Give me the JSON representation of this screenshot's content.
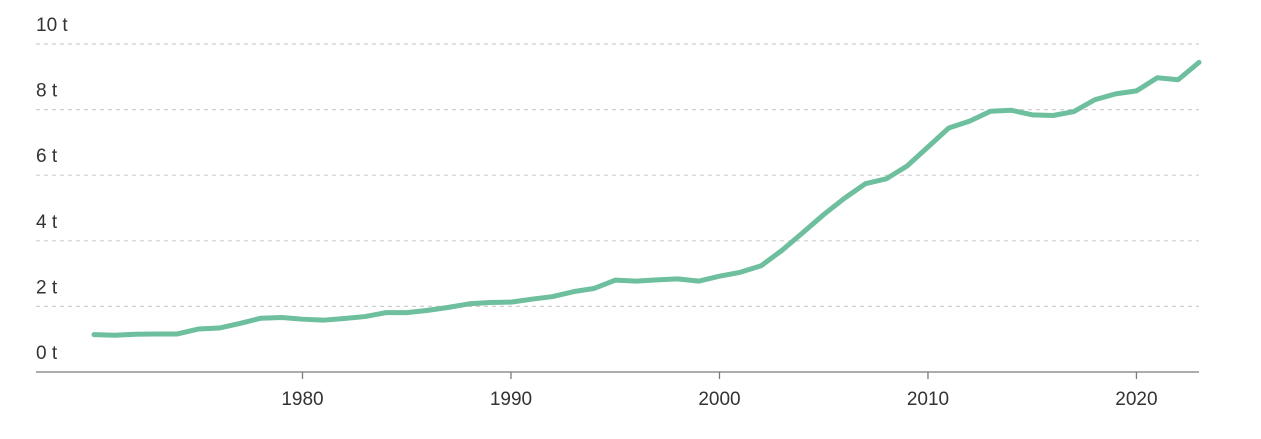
{
  "chart_data": {
    "type": "line",
    "title": "",
    "xlabel": "",
    "ylabel": "",
    "unit_suffix": " t",
    "xlim": [
      1970,
      2023
    ],
    "ylim": [
      0,
      10
    ],
    "y_ticks": [
      0,
      2,
      4,
      6,
      8,
      10
    ],
    "y_tick_labels": [
      "0 t",
      "2 t",
      "4 t",
      "6 t",
      "8 t",
      "10 t"
    ],
    "x_ticks": [
      1980,
      1990,
      2000,
      2010,
      2020
    ],
    "x_tick_labels": [
      "1980",
      "1990",
      "2000",
      "2010",
      "2020"
    ],
    "grid": true,
    "line_color": "#6dbf9e",
    "series": [
      {
        "x": [
          1970,
          1971,
          1972,
          1973,
          1974,
          1975,
          1976,
          1977,
          1978,
          1979,
          1980,
          1981,
          1982,
          1983,
          1984,
          1985,
          1986,
          1987,
          1988,
          1989,
          1990,
          1991,
          1992,
          1993,
          1994,
          1995,
          1996,
          1997,
          1998,
          1999,
          2000,
          2001,
          2002,
          2003,
          2004,
          2005,
          2006,
          2007,
          2008,
          2009,
          2010,
          2011,
          2012,
          2013,
          2014,
          2015,
          2016,
          2017,
          2018,
          2019,
          2020,
          2021,
          2022,
          2023
        ],
        "values": [
          1.14,
          1.12,
          1.15,
          1.16,
          1.16,
          1.31,
          1.34,
          1.48,
          1.64,
          1.66,
          1.61,
          1.58,
          1.63,
          1.69,
          1.81,
          1.81,
          1.88,
          1.97,
          2.08,
          2.12,
          2.13,
          2.22,
          2.3,
          2.45,
          2.55,
          2.8,
          2.77,
          2.81,
          2.84,
          2.77,
          2.92,
          3.04,
          3.24,
          3.71,
          4.25,
          4.8,
          5.3,
          5.74,
          5.89,
          6.28,
          6.86,
          7.44,
          7.65,
          7.95,
          7.98,
          7.84,
          7.82,
          7.94,
          8.3,
          8.48,
          8.57,
          8.97,
          8.91,
          9.44
        ]
      }
    ]
  }
}
